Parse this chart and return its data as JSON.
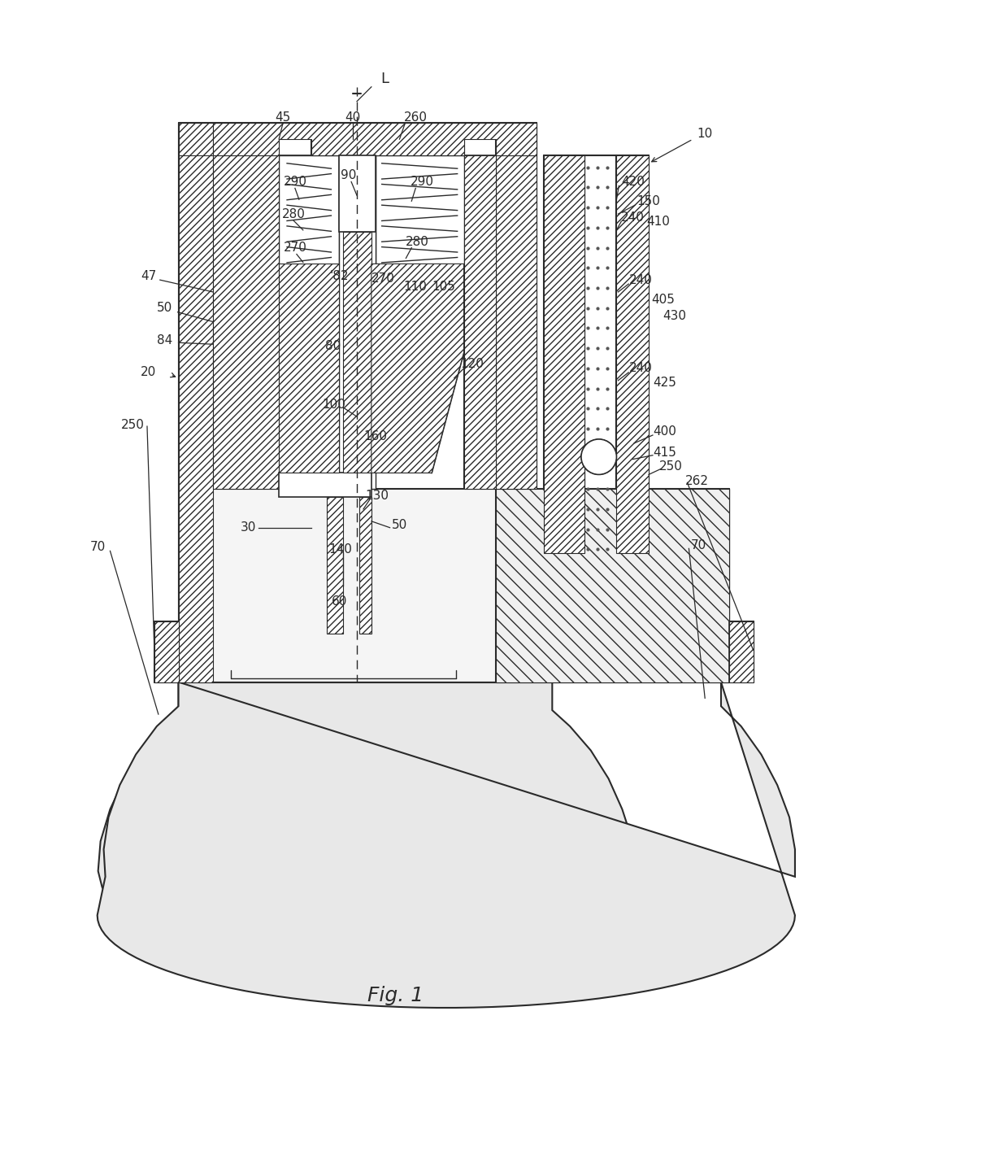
{
  "bg_color": "#ffffff",
  "line_color": "#2a2a2a",
  "title": "Fig. 1"
}
